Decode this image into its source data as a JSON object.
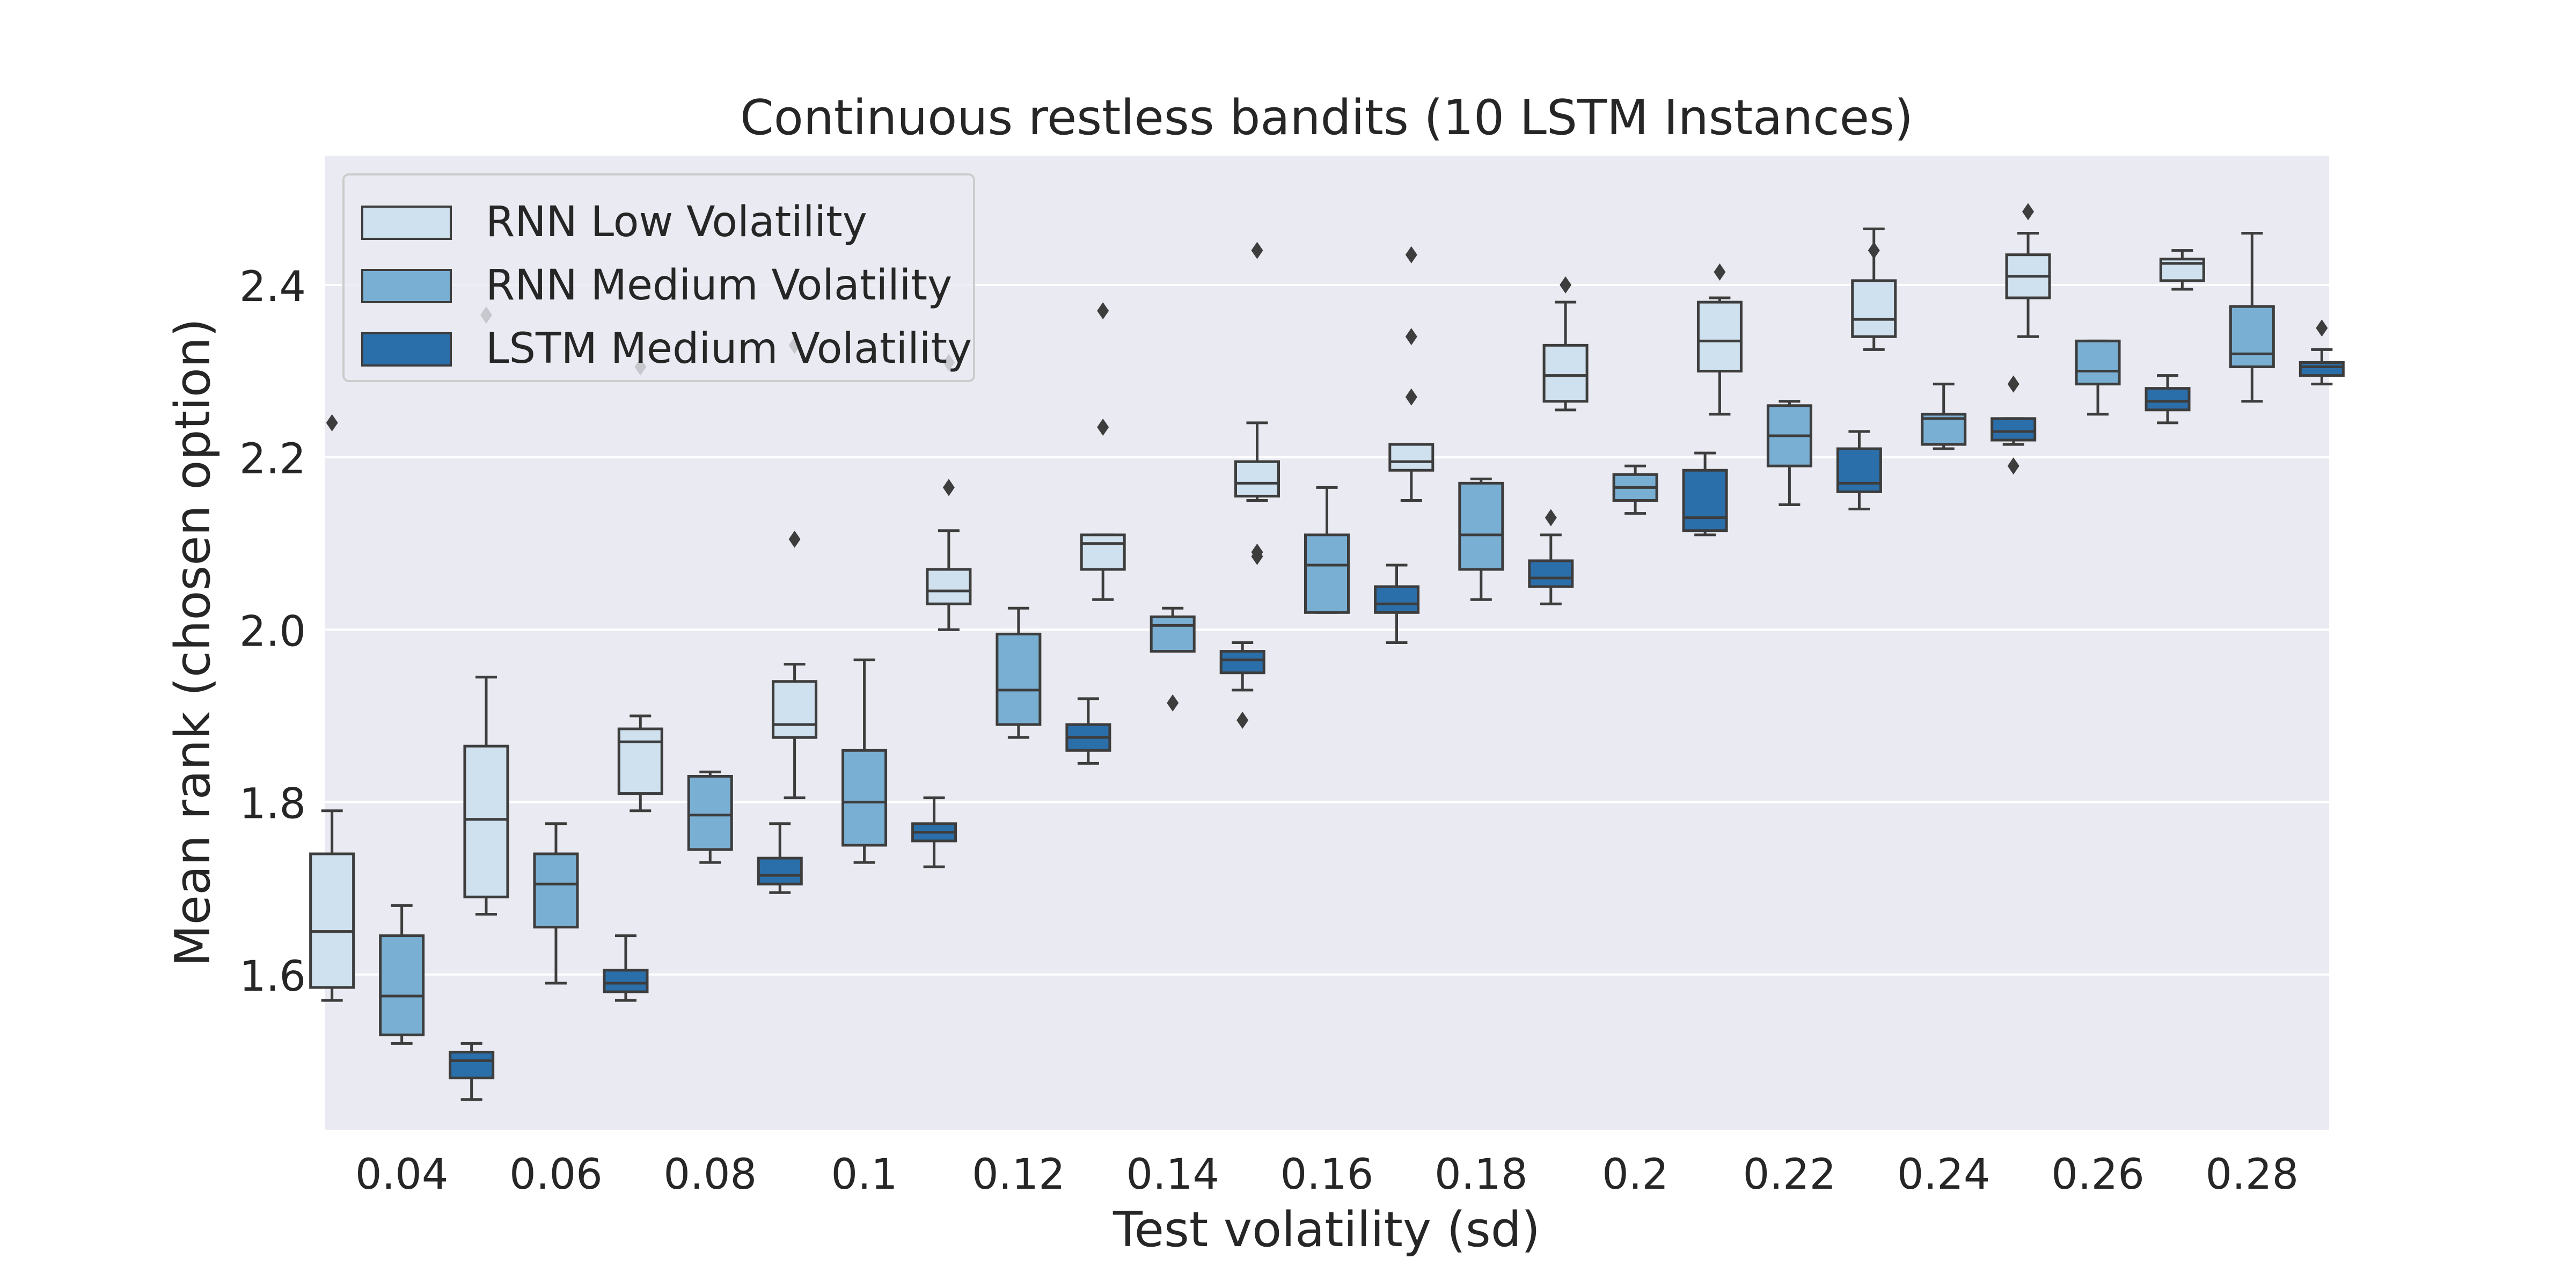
{
  "chart_data": {
    "type": "box",
    "title": "Continuous restless bandits (10 LSTM Instances)",
    "xlabel": "Test volatility (sd)",
    "ylabel": "Mean rank (chosen option)",
    "categories": [
      "0.04",
      "0.06",
      "0.08",
      "0.1",
      "0.12",
      "0.14",
      "0.16",
      "0.18",
      "0.2",
      "0.22",
      "0.24",
      "0.26",
      "0.28"
    ],
    "ylim": [
      1.42,
      2.55
    ],
    "yticks": [
      "1.6",
      "1.8",
      "2.0",
      "2.2",
      "2.4"
    ],
    "grid": true,
    "legend_position": "top-left",
    "series": [
      {
        "name": "RNN Low Volatility",
        "color": "#cfe0ee",
        "boxes": [
          {
            "whislo": 1.57,
            "q1": 1.585,
            "med": 1.65,
            "q3": 1.74,
            "whishi": 1.79,
            "fliers": [
              2.24
            ]
          },
          {
            "whislo": 1.67,
            "q1": 1.69,
            "med": 1.78,
            "q3": 1.865,
            "whishi": 1.945,
            "fliers": [
              2.365
            ]
          },
          {
            "whislo": 1.79,
            "q1": 1.81,
            "med": 1.87,
            "q3": 1.885,
            "whishi": 1.9,
            "fliers": [
              2.305
            ]
          },
          {
            "whislo": 1.805,
            "q1": 1.875,
            "med": 1.89,
            "q3": 1.94,
            "whishi": 1.96,
            "fliers": [
              2.105,
              2.33
            ]
          },
          {
            "whislo": 2.0,
            "q1": 2.03,
            "med": 2.045,
            "q3": 2.07,
            "whishi": 2.115,
            "fliers": [
              2.165,
              2.31
            ]
          },
          {
            "whislo": 2.035,
            "q1": 2.07,
            "med": 2.1,
            "q3": 2.11,
            "whishi": 2.11,
            "fliers": [
              2.235,
              2.37
            ]
          },
          {
            "whislo": 2.15,
            "q1": 2.155,
            "med": 2.17,
            "q3": 2.195,
            "whishi": 2.24,
            "fliers": [
              2.09,
              2.085,
              2.44
            ]
          },
          {
            "whislo": 2.15,
            "q1": 2.185,
            "med": 2.195,
            "q3": 2.215,
            "whishi": 2.215,
            "fliers": [
              2.27,
              2.34,
              2.435
            ]
          },
          {
            "whislo": 2.255,
            "q1": 2.265,
            "med": 2.295,
            "q3": 2.33,
            "whishi": 2.38,
            "fliers": [
              2.4
            ]
          },
          {
            "whislo": 2.25,
            "q1": 2.3,
            "med": 2.335,
            "q3": 2.38,
            "whishi": 2.385,
            "fliers": [
              2.415
            ]
          },
          {
            "whislo": 2.325,
            "q1": 2.34,
            "med": 2.36,
            "q3": 2.405,
            "whishi": 2.465,
            "fliers": [
              2.44
            ]
          },
          {
            "whislo": 2.34,
            "q1": 2.385,
            "med": 2.41,
            "q3": 2.435,
            "whishi": 2.46,
            "fliers": [
              2.485
            ]
          },
          {
            "whislo": 2.395,
            "q1": 2.405,
            "med": 2.425,
            "q3": 2.43,
            "whishi": 2.44,
            "fliers": []
          }
        ]
      },
      {
        "name": "RNN Medium Volatility",
        "color": "#7aafd4",
        "boxes": [
          {
            "whislo": 1.52,
            "q1": 1.53,
            "med": 1.575,
            "q3": 1.645,
            "whishi": 1.68,
            "fliers": []
          },
          {
            "whislo": 1.59,
            "q1": 1.655,
            "med": 1.705,
            "q3": 1.74,
            "whishi": 1.775,
            "fliers": []
          },
          {
            "whislo": 1.73,
            "q1": 1.745,
            "med": 1.785,
            "q3": 1.83,
            "whishi": 1.835,
            "fliers": []
          },
          {
            "whislo": 1.73,
            "q1": 1.75,
            "med": 1.8,
            "q3": 1.86,
            "whishi": 1.965,
            "fliers": []
          },
          {
            "whislo": 1.875,
            "q1": 1.89,
            "med": 1.93,
            "q3": 1.995,
            "whishi": 2.025,
            "fliers": []
          },
          {
            "whislo": 1.975,
            "q1": 1.975,
            "med": 2.005,
            "q3": 2.015,
            "whishi": 2.025,
            "fliers": [
              1.915
            ]
          },
          {
            "whislo": 2.02,
            "q1": 2.02,
            "med": 2.075,
            "q3": 2.11,
            "whishi": 2.165,
            "fliers": []
          },
          {
            "whislo": 2.035,
            "q1": 2.07,
            "med": 2.11,
            "q3": 2.17,
            "whishi": 2.175,
            "fliers": []
          },
          {
            "whislo": 2.135,
            "q1": 2.15,
            "med": 2.165,
            "q3": 2.18,
            "whishi": 2.19,
            "fliers": []
          },
          {
            "whislo": 2.145,
            "q1": 2.19,
            "med": 2.225,
            "q3": 2.26,
            "whishi": 2.265,
            "fliers": []
          },
          {
            "whislo": 2.21,
            "q1": 2.215,
            "med": 2.245,
            "q3": 2.25,
            "whishi": 2.285,
            "fliers": []
          },
          {
            "whislo": 2.25,
            "q1": 2.285,
            "med": 2.3,
            "q3": 2.335,
            "whishi": 2.335,
            "fliers": []
          },
          {
            "whislo": 2.265,
            "q1": 2.305,
            "med": 2.32,
            "q3": 2.375,
            "whishi": 2.46,
            "fliers": []
          }
        ]
      },
      {
        "name": "LSTM Medium Volatility",
        "color": "#2b6faa",
        "boxes": [
          {
            "whislo": 1.455,
            "q1": 1.48,
            "med": 1.5,
            "q3": 1.51,
            "whishi": 1.52,
            "fliers": []
          },
          {
            "whislo": 1.57,
            "q1": 1.58,
            "med": 1.59,
            "q3": 1.605,
            "whishi": 1.645,
            "fliers": []
          },
          {
            "whislo": 1.695,
            "q1": 1.705,
            "med": 1.715,
            "q3": 1.735,
            "whishi": 1.775,
            "fliers": []
          },
          {
            "whislo": 1.725,
            "q1": 1.755,
            "med": 1.765,
            "q3": 1.775,
            "whishi": 1.805,
            "fliers": []
          },
          {
            "whislo": 1.845,
            "q1": 1.86,
            "med": 1.875,
            "q3": 1.89,
            "whishi": 1.92,
            "fliers": []
          },
          {
            "whislo": 1.93,
            "q1": 1.95,
            "med": 1.965,
            "q3": 1.975,
            "whishi": 1.985,
            "fliers": [
              1.895
            ]
          },
          {
            "whislo": 1.985,
            "q1": 2.02,
            "med": 2.03,
            "q3": 2.05,
            "whishi": 2.075,
            "fliers": []
          },
          {
            "whislo": 2.03,
            "q1": 2.05,
            "med": 2.06,
            "q3": 2.08,
            "whishi": 2.11,
            "fliers": [
              2.13
            ]
          },
          {
            "whislo": 2.11,
            "q1": 2.115,
            "med": 2.13,
            "q3": 2.185,
            "whishi": 2.205,
            "fliers": []
          },
          {
            "whislo": 2.14,
            "q1": 2.16,
            "med": 2.17,
            "q3": 2.21,
            "whishi": 2.23,
            "fliers": []
          },
          {
            "whislo": 2.215,
            "q1": 2.22,
            "med": 2.23,
            "q3": 2.245,
            "whishi": 2.245,
            "fliers": [
              2.19,
              2.285
            ]
          },
          {
            "whislo": 2.24,
            "q1": 2.255,
            "med": 2.265,
            "q3": 2.28,
            "whishi": 2.295,
            "fliers": []
          },
          {
            "whislo": 2.285,
            "q1": 2.295,
            "med": 2.305,
            "q3": 2.31,
            "whishi": 2.325,
            "fliers": [
              2.35
            ]
          }
        ]
      }
    ]
  }
}
